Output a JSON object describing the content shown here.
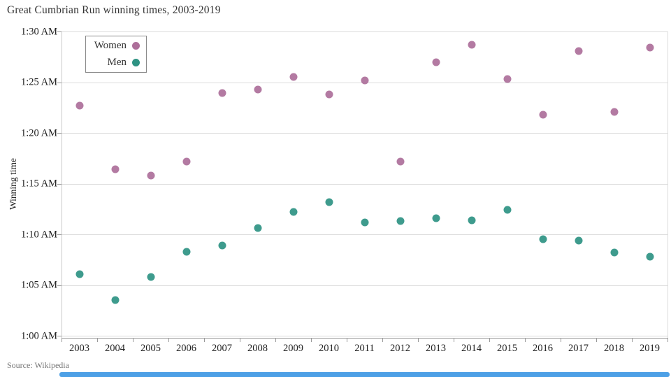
{
  "title": "Great Cumbrian Run winning times, 2003-2019",
  "source": "Source: Wikipedia",
  "colors": {
    "women": "#ad6f9a",
    "men": "#2e9383",
    "grid": "#dcdcdc",
    "axis": "#9a9a9a",
    "text": "#222222",
    "muted": "#777777",
    "bottom_bar": "#4da0e6"
  },
  "legend": {
    "items": [
      {
        "label": "Women",
        "color_key": "women"
      },
      {
        "label": "Men",
        "color_key": "men"
      }
    ]
  },
  "chart_data": {
    "type": "scatter",
    "title": "Great Cumbrian Run winning times, 2003-2019",
    "xlabel": "",
    "ylabel": "Winning time",
    "x_categories": [
      "2003",
      "2004",
      "2005",
      "2006",
      "2007",
      "2008",
      "2009",
      "2010",
      "2011",
      "2012",
      "2013",
      "2014",
      "2015",
      "2016",
      "2017",
      "2018",
      "2019"
    ],
    "y_tick_labels": [
      "1:30 AM",
      "1:25 AM",
      "1:20 AM",
      "1:15 AM",
      "1:10 AM",
      "1:05 AM",
      "1:00 AM"
    ],
    "y_axis": {
      "unit": "minutes after 1:00 AM",
      "min": 0,
      "max": 30,
      "tick_step": 5
    },
    "grid": "horizontal-only",
    "legend_position": "top-left-inside",
    "series": [
      {
        "name": "Women",
        "color": "#ad6f9a",
        "values_minutes_after_1am": [
          22.7,
          16.4,
          15.8,
          17.2,
          23.9,
          24.3,
          25.5,
          23.8,
          25.2,
          17.2,
          27.0,
          28.7,
          25.3,
          21.8,
          28.1,
          22.1,
          28.4
        ]
      },
      {
        "name": "Men",
        "color": "#2e9383",
        "values_minutes_after_1am": [
          6.1,
          3.5,
          5.8,
          8.3,
          8.9,
          10.6,
          12.2,
          13.2,
          11.2,
          11.3,
          11.6,
          11.4,
          12.4,
          9.5,
          9.4,
          8.2,
          7.8
        ]
      }
    ]
  }
}
